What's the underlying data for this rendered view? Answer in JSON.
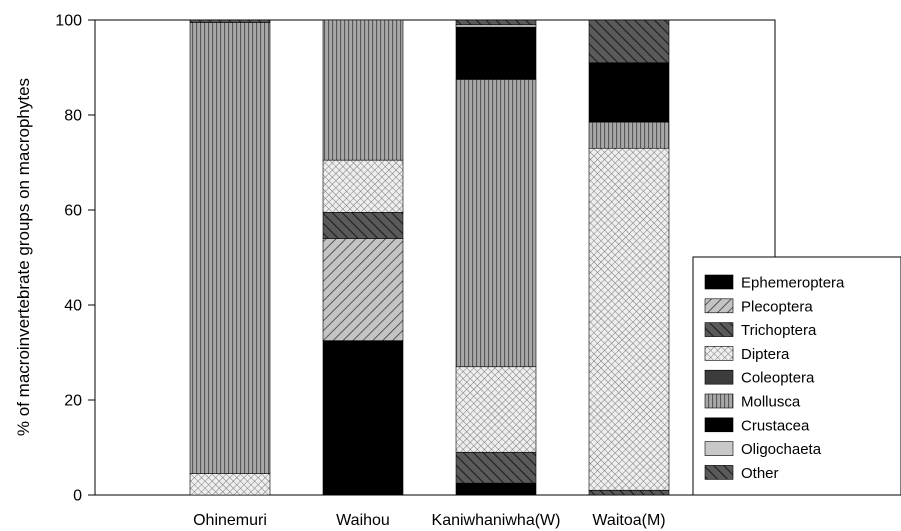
{
  "chart_data": {
    "type": "bar",
    "stacked": true,
    "title": "",
    "xlabel": "",
    "ylabel": "% of macroinvertebrate groups on macrophytes",
    "ylim": [
      0,
      100
    ],
    "yticks": [
      "0",
      "20",
      "40",
      "60",
      "80",
      "100"
    ],
    "categories": [
      "Ohinemuri",
      "Waihou",
      "Kaniwhaniwha(W)",
      "Waitoa(M)"
    ],
    "series": [
      {
        "name": "Ephemeroptera",
        "pattern": "solid-black",
        "values": [
          0,
          32.5,
          2.5,
          0
        ]
      },
      {
        "name": "Plecoptera",
        "pattern": "hatch-gray-diagonal",
        "values": [
          0,
          21.5,
          0,
          0
        ]
      },
      {
        "name": "Trichoptera",
        "pattern": "hatch-dark-diagonal",
        "values": [
          0,
          5.5,
          6.5,
          1
        ]
      },
      {
        "name": "Diptera",
        "pattern": "cross-hatch-light",
        "values": [
          4.5,
          11,
          18,
          72
        ]
      },
      {
        "name": "Coleoptera",
        "pattern": "solid-dark-gray",
        "values": [
          0,
          0,
          0,
          0
        ]
      },
      {
        "name": "Mollusca",
        "pattern": "vertical-stripes",
        "values": [
          95,
          29.5,
          60.5,
          5.5
        ]
      },
      {
        "name": "Crustacea",
        "pattern": "solid-black",
        "values": [
          0,
          0,
          11,
          12.5
        ]
      },
      {
        "name": "Oligochaeta",
        "pattern": "solid-light-gray",
        "values": [
          0,
          0,
          0.5,
          0
        ]
      },
      {
        "name": "Other",
        "pattern": "hatch-dark-diagonal",
        "values": [
          0.5,
          0,
          1,
          9
        ]
      }
    ],
    "grid": false,
    "legend_position": "bottom-right"
  }
}
